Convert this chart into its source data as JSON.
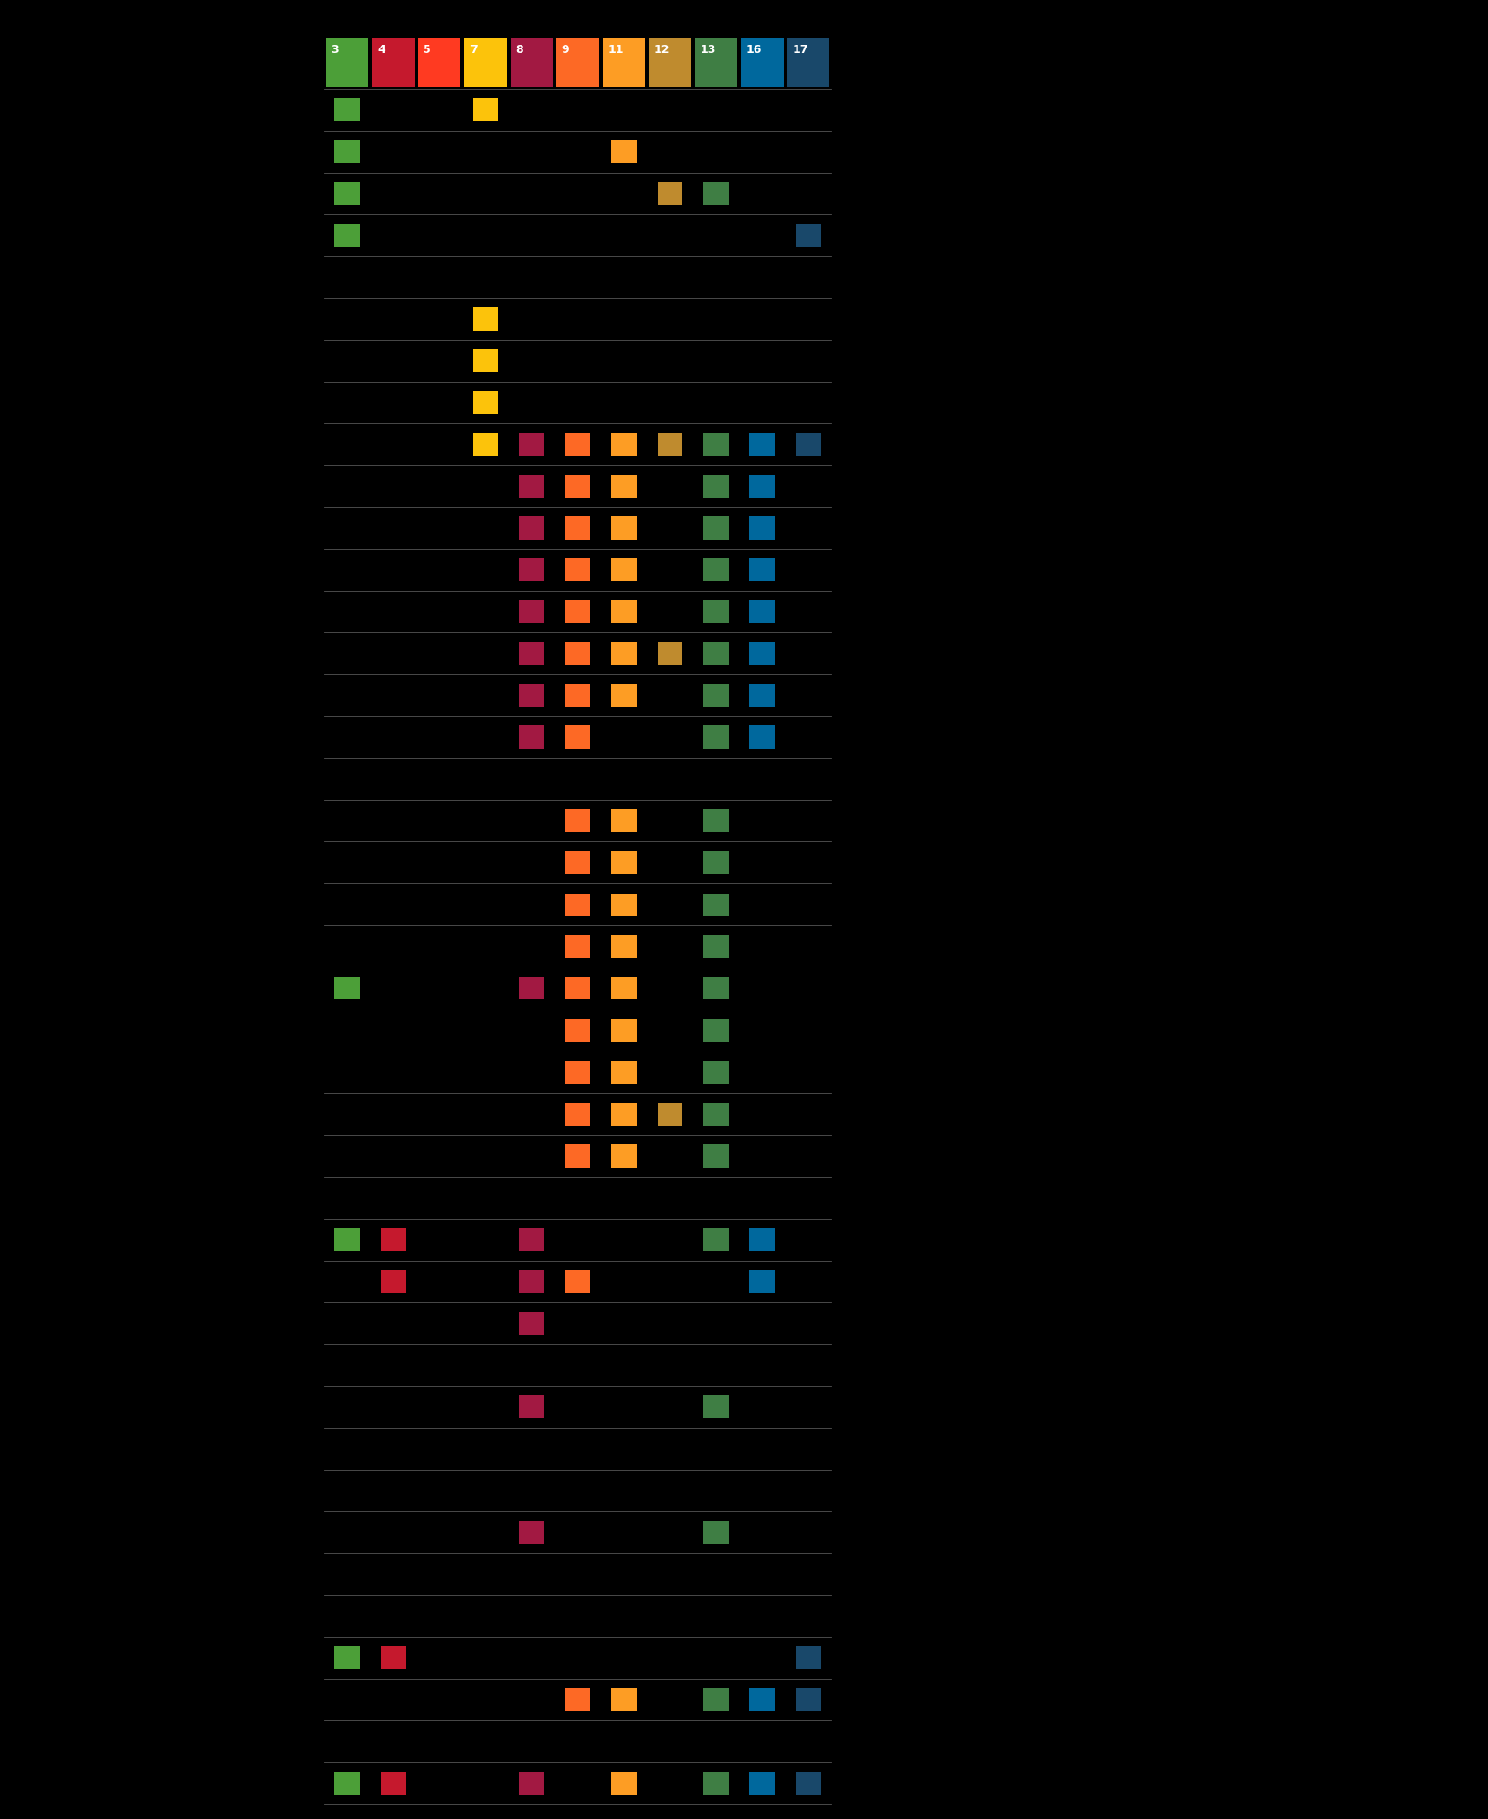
{
  "background_color": "#000000",
  "line_color": "#888888",
  "figsize": [
    16.29,
    19.91
  ],
  "dpi": 100,
  "sdg_colors": {
    "3": "#4C9F38",
    "4": "#C5192D",
    "5": "#FF3A21",
    "7": "#FCC30B",
    "8": "#A21942",
    "9": "#FD6925",
    "11": "#FD9D24",
    "12": "#BF8B2E",
    "13": "#3F7E44",
    "16": "#00689D",
    "17": "#19486A"
  },
  "sdg_order": [
    3,
    4,
    5,
    7,
    8,
    9,
    11,
    12,
    13,
    16,
    17
  ],
  "rows": [
    [
      {
        "col": 0,
        "sdg": "3"
      },
      {
        "col": 3,
        "sdg": "7"
      }
    ],
    [
      {
        "col": 0,
        "sdg": "3"
      },
      {
        "col": 6,
        "sdg": "11"
      }
    ],
    [
      {
        "col": 0,
        "sdg": "3"
      },
      {
        "col": 7,
        "sdg": "12"
      },
      {
        "col": 8,
        "sdg": "13"
      }
    ],
    [
      {
        "col": 0,
        "sdg": "3"
      },
      {
        "col": 10,
        "sdg": "17"
      }
    ],
    [],
    [
      {
        "col": 3,
        "sdg": "7"
      }
    ],
    [
      {
        "col": 3,
        "sdg": "7"
      }
    ],
    [
      {
        "col": 3,
        "sdg": "7"
      }
    ],
    [
      {
        "col": 3,
        "sdg": "7"
      },
      {
        "col": 4,
        "sdg": "8"
      },
      {
        "col": 5,
        "sdg": "9"
      },
      {
        "col": 6,
        "sdg": "11"
      },
      {
        "col": 7,
        "sdg": "12"
      },
      {
        "col": 8,
        "sdg": "13"
      },
      {
        "col": 9,
        "sdg": "16"
      },
      {
        "col": 10,
        "sdg": "17"
      }
    ],
    [
      {
        "col": 4,
        "sdg": "8"
      },
      {
        "col": 5,
        "sdg": "9"
      },
      {
        "col": 6,
        "sdg": "11"
      },
      {
        "col": 8,
        "sdg": "13"
      },
      {
        "col": 9,
        "sdg": "16"
      }
    ],
    [
      {
        "col": 4,
        "sdg": "8"
      },
      {
        "col": 5,
        "sdg": "9"
      },
      {
        "col": 6,
        "sdg": "11"
      },
      {
        "col": 8,
        "sdg": "13"
      },
      {
        "col": 9,
        "sdg": "16"
      }
    ],
    [
      {
        "col": 4,
        "sdg": "8"
      },
      {
        "col": 5,
        "sdg": "9"
      },
      {
        "col": 6,
        "sdg": "11"
      },
      {
        "col": 8,
        "sdg": "13"
      },
      {
        "col": 9,
        "sdg": "16"
      }
    ],
    [
      {
        "col": 4,
        "sdg": "8"
      },
      {
        "col": 5,
        "sdg": "9"
      },
      {
        "col": 6,
        "sdg": "11"
      },
      {
        "col": 8,
        "sdg": "13"
      },
      {
        "col": 9,
        "sdg": "16"
      }
    ],
    [
      {
        "col": 4,
        "sdg": "8"
      },
      {
        "col": 5,
        "sdg": "9"
      },
      {
        "col": 6,
        "sdg": "11"
      },
      {
        "col": 7,
        "sdg": "12"
      },
      {
        "col": 8,
        "sdg": "13"
      },
      {
        "col": 9,
        "sdg": "16"
      }
    ],
    [
      {
        "col": 4,
        "sdg": "8"
      },
      {
        "col": 5,
        "sdg": "9"
      },
      {
        "col": 6,
        "sdg": "11"
      },
      {
        "col": 8,
        "sdg": "13"
      },
      {
        "col": 9,
        "sdg": "16"
      }
    ],
    [
      {
        "col": 4,
        "sdg": "8"
      },
      {
        "col": 5,
        "sdg": "9"
      },
      {
        "col": 8,
        "sdg": "13"
      },
      {
        "col": 9,
        "sdg": "16"
      }
    ],
    [],
    [
      {
        "col": 5,
        "sdg": "9"
      },
      {
        "col": 6,
        "sdg": "11"
      },
      {
        "col": 8,
        "sdg": "13"
      }
    ],
    [
      {
        "col": 5,
        "sdg": "9"
      },
      {
        "col": 6,
        "sdg": "11"
      },
      {
        "col": 8,
        "sdg": "13"
      }
    ],
    [
      {
        "col": 5,
        "sdg": "9"
      },
      {
        "col": 6,
        "sdg": "11"
      },
      {
        "col": 8,
        "sdg": "13"
      }
    ],
    [
      {
        "col": 5,
        "sdg": "9"
      },
      {
        "col": 6,
        "sdg": "11"
      },
      {
        "col": 8,
        "sdg": "13"
      }
    ],
    [
      {
        "col": 0,
        "sdg": "3"
      },
      {
        "col": 4,
        "sdg": "8"
      },
      {
        "col": 5,
        "sdg": "9"
      },
      {
        "col": 6,
        "sdg": "11"
      },
      {
        "col": 8,
        "sdg": "13"
      }
    ],
    [
      {
        "col": 5,
        "sdg": "9"
      },
      {
        "col": 6,
        "sdg": "11"
      },
      {
        "col": 8,
        "sdg": "13"
      }
    ],
    [
      {
        "col": 5,
        "sdg": "9"
      },
      {
        "col": 6,
        "sdg": "11"
      },
      {
        "col": 8,
        "sdg": "13"
      }
    ],
    [
      {
        "col": 5,
        "sdg": "9"
      },
      {
        "col": 6,
        "sdg": "11"
      },
      {
        "col": 7,
        "sdg": "12"
      },
      {
        "col": 8,
        "sdg": "13"
      }
    ],
    [
      {
        "col": 5,
        "sdg": "9"
      },
      {
        "col": 6,
        "sdg": "11"
      },
      {
        "col": 8,
        "sdg": "13"
      }
    ],
    [],
    [
      {
        "col": 0,
        "sdg": "3"
      },
      {
        "col": 1,
        "sdg": "4"
      },
      {
        "col": 4,
        "sdg": "8"
      },
      {
        "col": 8,
        "sdg": "13"
      },
      {
        "col": 9,
        "sdg": "16"
      }
    ],
    [
      {
        "col": 1,
        "sdg": "4"
      },
      {
        "col": 4,
        "sdg": "8"
      },
      {
        "col": 5,
        "sdg": "9"
      },
      {
        "col": 9,
        "sdg": "16"
      }
    ],
    [
      {
        "col": 4,
        "sdg": "8"
      }
    ],
    [],
    [
      {
        "col": 4,
        "sdg": "8"
      },
      {
        "col": 8,
        "sdg": "13"
      }
    ],
    [],
    [],
    [
      {
        "col": 4,
        "sdg": "8"
      },
      {
        "col": 8,
        "sdg": "13"
      }
    ],
    [],
    [],
    [
      {
        "col": 0,
        "sdg": "3"
      },
      {
        "col": 1,
        "sdg": "4"
      },
      {
        "col": 10,
        "sdg": "17"
      }
    ],
    [
      {
        "col": 5,
        "sdg": "9"
      },
      {
        "col": 6,
        "sdg": "11"
      },
      {
        "col": 8,
        "sdg": "13"
      },
      {
        "col": 9,
        "sdg": "16"
      },
      {
        "col": 10,
        "sdg": "17"
      }
    ],
    [],
    [
      {
        "col": 0,
        "sdg": "3"
      },
      {
        "col": 1,
        "sdg": "4"
      },
      {
        "col": 4,
        "sdg": "8"
      },
      {
        "col": 6,
        "sdg": "11"
      },
      {
        "col": 8,
        "sdg": "13"
      },
      {
        "col": 9,
        "sdg": "16"
      },
      {
        "col": 10,
        "sdg": "17"
      }
    ]
  ]
}
